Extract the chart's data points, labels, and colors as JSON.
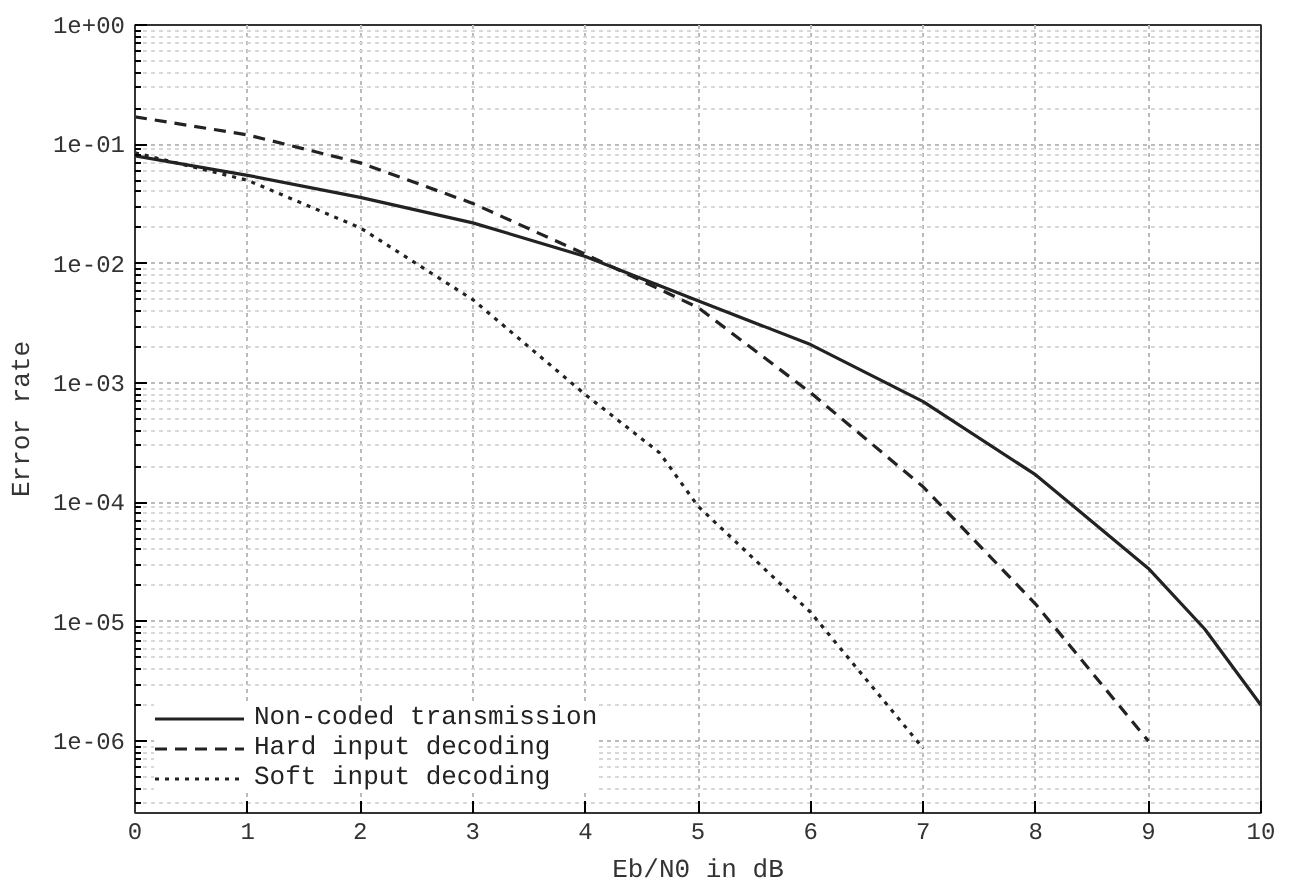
{
  "chart_data": {
    "type": "line",
    "xlabel": "Eb/N0 in dB",
    "ylabel": "Error rate",
    "log": "y",
    "grid": true,
    "legend": "bottom left",
    "xlim": [
      0,
      10
    ],
    "ylim": [
      2.5e-07,
      1
    ],
    "xticks": [
      0,
      1,
      2,
      3,
      4,
      5,
      6,
      7,
      8,
      9,
      10
    ],
    "yticks": [
      {
        "value": 1e-06,
        "label": "1e-06"
      },
      {
        "value": 1e-05,
        "label": "1e-05"
      },
      {
        "value": 0.0001,
        "label": "1e-04"
      },
      {
        "value": 0.001,
        "label": "1e-03"
      },
      {
        "value": 0.01,
        "label": "1e-02"
      },
      {
        "value": 0.1,
        "label": "1e-01"
      },
      {
        "value": 1,
        "label": "1e+00"
      }
    ],
    "series": [
      {
        "name": "Non-coded transmission",
        "color": "#222222",
        "line_style": "solid",
        "x": [
          0,
          1,
          2,
          3,
          4,
          5,
          6,
          7,
          8,
          9,
          9.5,
          10
        ],
        "values": [
          0.08,
          0.055,
          0.036,
          0.022,
          0.0115,
          0.0049,
          0.0021,
          0.0007,
          0.00017,
          2.8e-05,
          8.7e-06,
          2e-06
        ]
      },
      {
        "name": "Hard input decoding",
        "color": "#222222",
        "line_style": "dashed",
        "x": [
          0,
          1,
          2,
          3,
          4,
          5,
          6,
          7,
          8,
          9
        ],
        "values": [
          0.17,
          0.12,
          0.07,
          0.032,
          0.012,
          0.0043,
          0.00083,
          0.000135,
          1.4e-05,
          1e-06
        ]
      },
      {
        "name": "Soft input decoding",
        "color": "#222222",
        "line_style": "dotted",
        "x": [
          0,
          1,
          2,
          3,
          4,
          4.66,
          5,
          6,
          7
        ],
        "values": [
          0.085,
          0.05,
          0.02,
          0.005,
          0.0008,
          0.00026,
          9.3e-05,
          1.2e-05,
          8.7e-07
        ]
      }
    ]
  }
}
